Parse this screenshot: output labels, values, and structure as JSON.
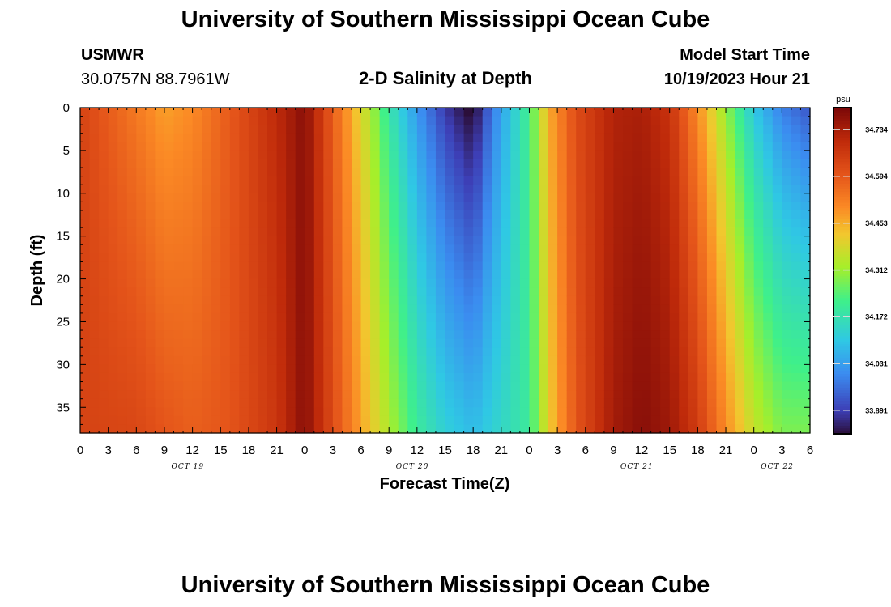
{
  "header": {
    "title": "University of Southern Mississippi Ocean Cube",
    "station": "USMWR",
    "coords": "30.0757N  88.7961W",
    "subtitle": "2-D Salinity at Depth",
    "start_label": "Model Start Time",
    "start_value": "10/19/2023 Hour 21"
  },
  "footer": {
    "title": "University of Southern Mississippi Ocean Cube"
  },
  "chart_data": {
    "type": "heatmap",
    "xlabel": "Forecast Time(Z)",
    "ylabel": "Depth (ft)",
    "colorbar_unit": "psu",
    "xlim": [
      0,
      78
    ],
    "ylim": [
      38,
      0
    ],
    "x_ticks": [
      0,
      3,
      6,
      9,
      12,
      15,
      18,
      21,
      24,
      27,
      30,
      33,
      36,
      39,
      42,
      45,
      48,
      51,
      54,
      57,
      60,
      63,
      66,
      69,
      72,
      75,
      78
    ],
    "x_tick_labels": [
      "0",
      "3",
      "6",
      "9",
      "12",
      "15",
      "18",
      "21",
      "0",
      "3",
      "6",
      "9",
      "12",
      "15",
      "18",
      "21",
      "0",
      "3",
      "6",
      "9",
      "12",
      "15",
      "18",
      "21",
      "0",
      "3",
      "6"
    ],
    "date_labels": [
      {
        "text": "OCT 19",
        "at": 11.5
      },
      {
        "text": "OCT 20",
        "at": 35.5
      },
      {
        "text": "OCT 21",
        "at": 59.5
      },
      {
        "text": "OCT 22",
        "at": 74.5
      }
    ],
    "y_ticks": [
      0,
      5,
      10,
      15,
      20,
      25,
      30,
      35
    ],
    "colorbar_ticks": [
      "34.734",
      "34.594",
      "34.453",
      "34.312",
      "34.172",
      "34.031",
      "33.891"
    ],
    "value_range": [
      33.82,
      34.8
    ],
    "colormap": [
      "#2b0f3a",
      "#3d3fb6",
      "#3b8cf0",
      "#2fc8e4",
      "#3ff08a",
      "#a6ef2a",
      "#f2c72e",
      "#fb8a25",
      "#e4541a",
      "#bf2a0a",
      "#7a0808"
    ],
    "colormap_stops": [
      33.82,
      33.89,
      34.0,
      34.1,
      34.22,
      34.32,
      34.42,
      34.5,
      34.6,
      34.7,
      34.8
    ],
    "profile_x": [
      0,
      6,
      9,
      12,
      16,
      21,
      24,
      27,
      31,
      33,
      36,
      39,
      42,
      44,
      48,
      50,
      53,
      57,
      60,
      63,
      66,
      69,
      72,
      75,
      78
    ],
    "surface_values": [
      34.64,
      34.53,
      34.47,
      34.5,
      34.59,
      34.7,
      34.78,
      34.58,
      34.33,
      34.18,
      34.02,
      33.88,
      33.8,
      33.97,
      34.22,
      34.45,
      34.62,
      34.72,
      34.73,
      34.68,
      34.5,
      34.3,
      34.1,
      33.98,
      33.92
    ],
    "bottom_values": [
      34.64,
      34.63,
      34.6,
      34.58,
      34.6,
      34.67,
      34.78,
      34.62,
      34.42,
      34.33,
      34.2,
      34.12,
      34.08,
      34.12,
      34.2,
      34.4,
      34.6,
      34.74,
      34.78,
      34.75,
      34.66,
      34.5,
      34.36,
      34.28,
      34.28
    ]
  }
}
